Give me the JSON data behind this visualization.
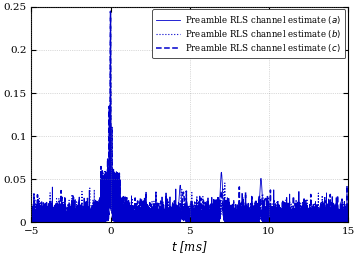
{
  "title": "",
  "xlabel": "$t$ [ms]",
  "ylabel": "",
  "xlim": [
    -5,
    15
  ],
  "ylim": [
    0,
    0.25
  ],
  "yticks": [
    0,
    0.05,
    0.1,
    0.15,
    0.2,
    0.25
  ],
  "xticks": [
    -5,
    0,
    5,
    10,
    15
  ],
  "line_color": "#0000CC",
  "legend_labels": [
    "Preamble RLS channel estimate $(a)$",
    "Preamble RLS channel estimate $(b)$",
    "Preamble RLS channel estimate $(c)$"
  ],
  "line_styles": [
    "-",
    ":",
    "--"
  ],
  "background_color": "#ffffff",
  "grid_color": "#888888"
}
